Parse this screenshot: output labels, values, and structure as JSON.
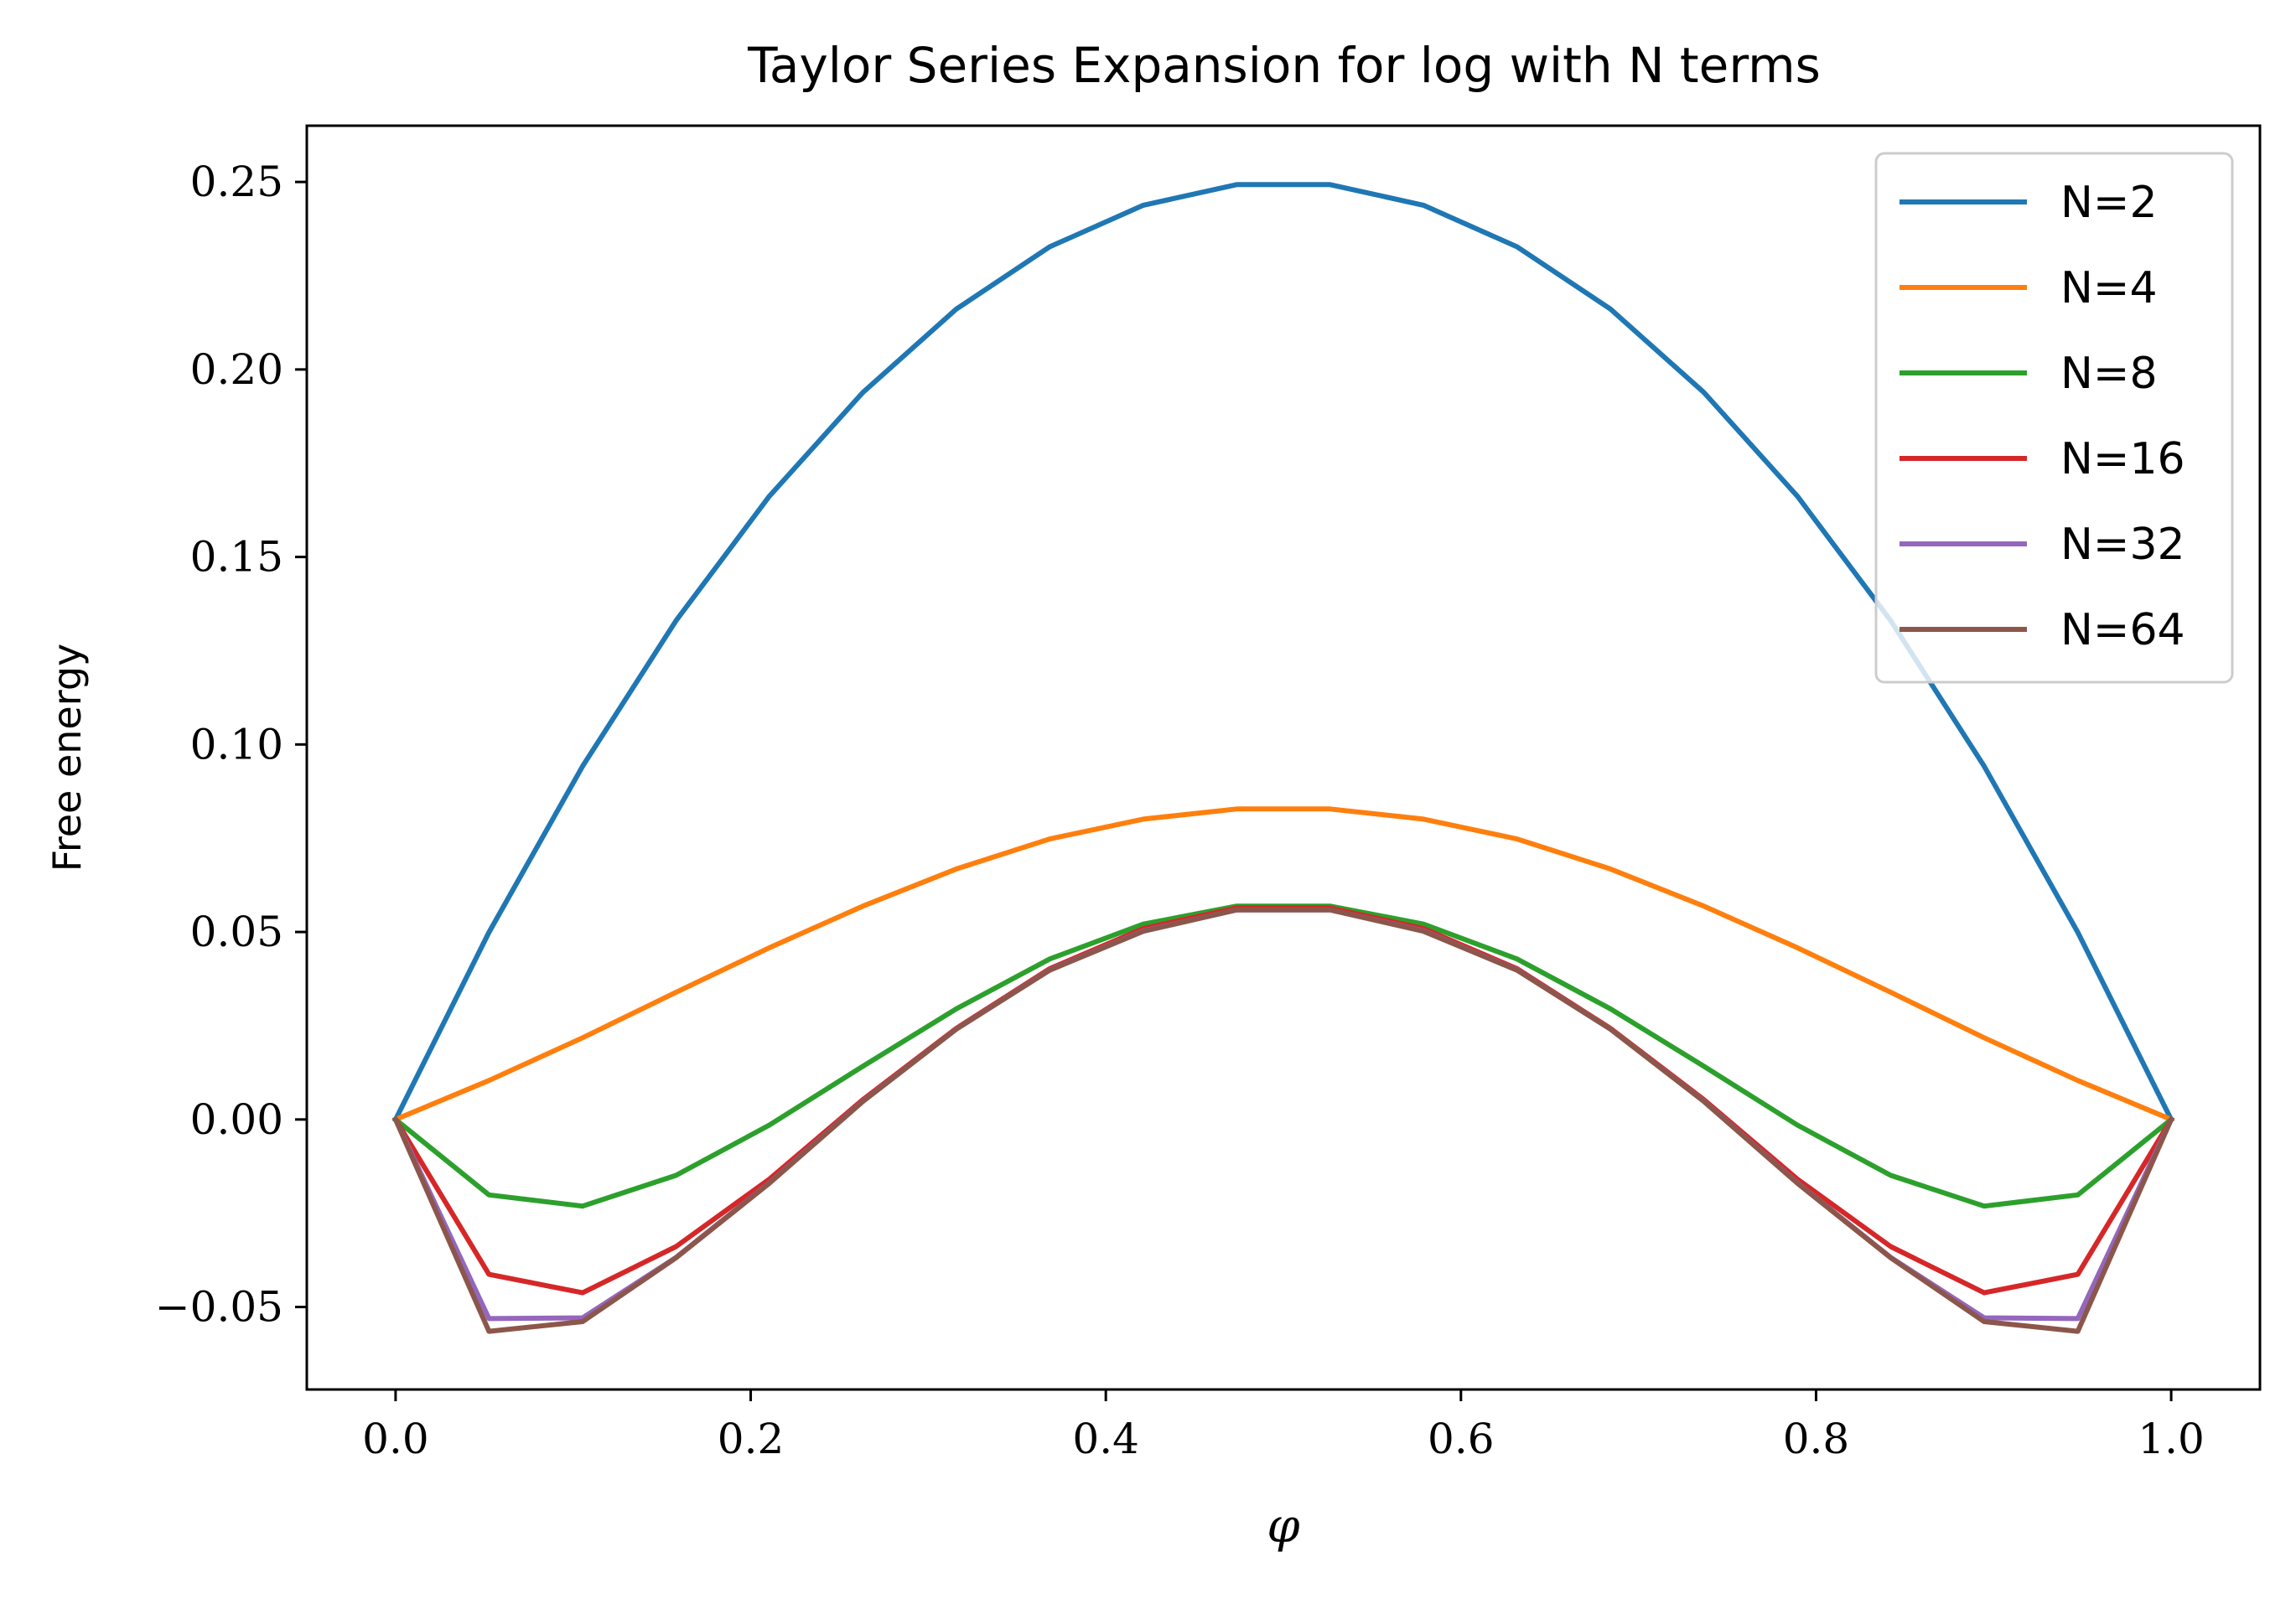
{
  "chart_data": {
    "type": "line",
    "title": "Taylor Series Expansion for log with N terms",
    "xlabel": "φ",
    "ylabel": "Free energy",
    "xlim": [
      -0.05,
      1.05
    ],
    "ylim": [
      -0.072,
      0.265
    ],
    "xticks": [
      0.0,
      0.2,
      0.4,
      0.6,
      0.8,
      1.0
    ],
    "xtick_labels": [
      "0.0",
      "0.2",
      "0.4",
      "0.6",
      "0.8",
      "1.0"
    ],
    "yticks": [
      -0.05,
      0.0,
      0.05,
      0.1,
      0.15,
      0.2,
      0.25
    ],
    "ytick_labels": [
      "−0.05",
      "0.00",
      "0.05",
      "0.10",
      "0.15",
      "0.20",
      "0.25"
    ],
    "grid": false,
    "legend_position": "top-right",
    "x": [
      0.0,
      0.0526,
      0.1053,
      0.1579,
      0.2105,
      0.2632,
      0.3158,
      0.3684,
      0.4211,
      0.4737,
      0.5263,
      0.5789,
      0.6316,
      0.6842,
      0.7368,
      0.7895,
      0.8421,
      0.8947,
      0.9474,
      1.0
    ],
    "series": [
      {
        "name": "N=2",
        "color": "#1f77b4",
        "values": [
          0.0,
          0.0499,
          0.0942,
          0.133,
          0.1662,
          0.1939,
          0.2161,
          0.2327,
          0.2438,
          0.2493,
          0.2493,
          0.2438,
          0.2327,
          0.2161,
          0.1939,
          0.1662,
          0.133,
          0.0942,
          0.0499,
          0.0
        ]
      },
      {
        "name": "N=4",
        "color": "#ff7f0e",
        "values": [
          0.0,
          0.0104,
          0.0218,
          0.0339,
          0.0458,
          0.0569,
          0.0668,
          0.0748,
          0.0801,
          0.0828,
          0.0828,
          0.0801,
          0.0748,
          0.0668,
          0.0569,
          0.0458,
          0.0339,
          0.0218,
          0.0104,
          0.0
        ]
      },
      {
        "name": "N=8",
        "color": "#2ca02c",
        "values": [
          0.0,
          -0.0201,
          -0.0231,
          -0.0149,
          -0.0015,
          0.0142,
          0.0295,
          0.0428,
          0.0521,
          0.0569,
          0.0569,
          0.0521,
          0.0428,
          0.0295,
          0.0142,
          -0.0015,
          -0.0149,
          -0.0231,
          -0.0201,
          0.0
        ]
      },
      {
        "name": "N=16",
        "color": "#d62728",
        "values": [
          0.0,
          -0.0413,
          -0.0462,
          -0.0339,
          -0.0159,
          0.0053,
          0.0243,
          0.0402,
          0.0509,
          0.0564,
          0.0564,
          0.0509,
          0.0402,
          0.0243,
          0.0053,
          -0.0159,
          -0.0339,
          -0.0462,
          -0.0413,
          0.0
        ]
      },
      {
        "name": "N=32",
        "color": "#9467bd",
        "values": [
          0.0,
          -0.0531,
          -0.0529,
          -0.0368,
          -0.0169,
          0.0049,
          0.0241,
          0.0399,
          0.0503,
          0.0559,
          0.0559,
          0.0503,
          0.0399,
          0.0241,
          0.0049,
          -0.0169,
          -0.0368,
          -0.0529,
          -0.0531,
          0.0
        ]
      },
      {
        "name": "N=64",
        "color": "#8c564b",
        "values": [
          0.0,
          -0.0565,
          -0.0539,
          -0.0369,
          -0.017,
          0.0048,
          0.0241,
          0.0398,
          0.0502,
          0.0559,
          0.0559,
          0.0502,
          0.0398,
          0.0241,
          0.0048,
          -0.017,
          -0.0369,
          -0.0539,
          -0.0565,
          0.0
        ]
      }
    ]
  }
}
